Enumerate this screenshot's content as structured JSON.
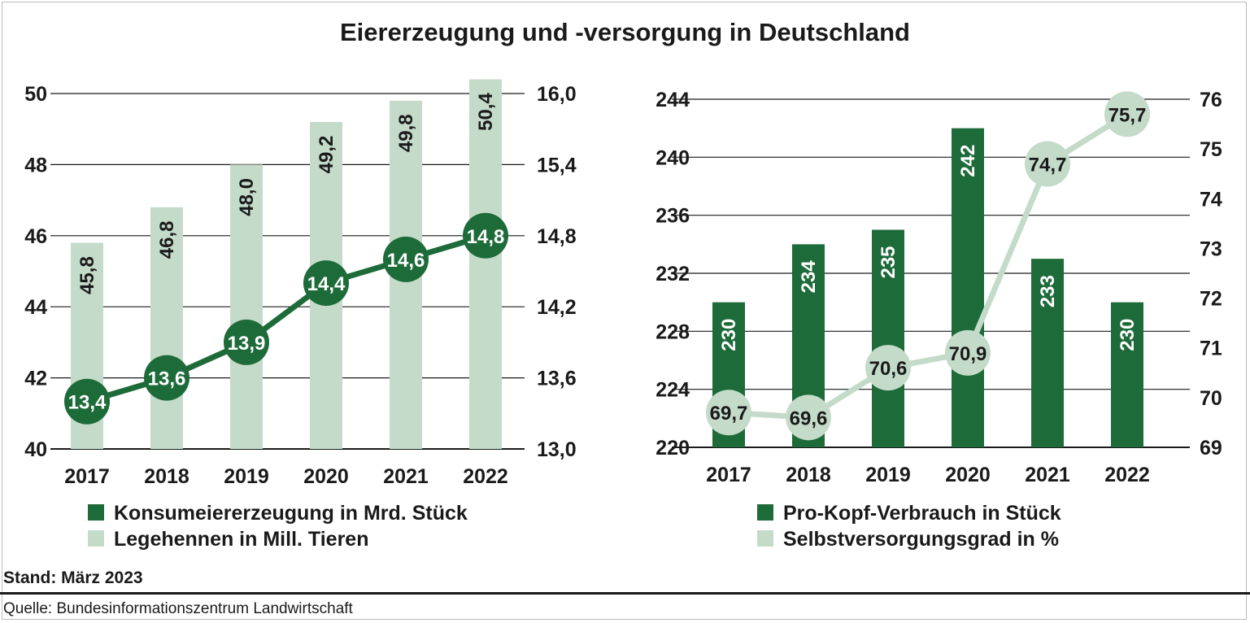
{
  "title": "Eiererzeugung und -versorgung in Deutschland",
  "footer": {
    "stand": "Stand: März 2023",
    "quelle": "Quelle: Bundesinformationszentrum Landwirtschaft"
  },
  "colors": {
    "dark_green": "#1e6b3a",
    "light_green": "#c4dbc9",
    "grid": "#1a1a1a"
  },
  "chart_data": [
    {
      "type": "bar+line",
      "categories": [
        "2017",
        "2018",
        "2019",
        "2020",
        "2021",
        "2022"
      ],
      "bar_series": {
        "name": "Legehennen in Mill. Tieren",
        "values": [
          45.8,
          46.8,
          48.0,
          49.2,
          49.8,
          50.4
        ],
        "labels": [
          "45,8",
          "46,8",
          "48,0",
          "49,2",
          "49,8",
          "50,4"
        ],
        "axis": "left"
      },
      "line_series": {
        "name": "Konsumeiererzeugung in Mrd. Stück",
        "values": [
          13.4,
          13.6,
          13.9,
          14.4,
          14.6,
          14.8
        ],
        "labels": [
          "13,4",
          "13,6",
          "13,9",
          "14,4",
          "14,6",
          "14,8"
        ],
        "axis": "right"
      },
      "left_axis": {
        "ylim": [
          40,
          50
        ],
        "ticks": [
          "40",
          "42",
          "44",
          "46",
          "48",
          "50"
        ]
      },
      "right_axis": {
        "ylim": [
          13.0,
          16.0
        ],
        "ticks": [
          "13,0",
          "13,6",
          "14,2",
          "14,8",
          "15,4",
          "16,0"
        ]
      },
      "legend": [
        {
          "label": "Konsumeiererzeugung in Mrd. Stück",
          "color": "#1e6b3a"
        },
        {
          "label": "Legehennen in Mill. Tieren",
          "color": "#c4dbc9"
        }
      ],
      "grid": true
    },
    {
      "type": "bar+line",
      "categories": [
        "2017",
        "2018",
        "2019",
        "2020",
        "2021",
        "2022"
      ],
      "bar_series": {
        "name": "Pro-Kopf-Verbrauch in Stück",
        "values": [
          230,
          234,
          235,
          242,
          233,
          230
        ],
        "labels": [
          "230",
          "234",
          "235",
          "242",
          "233",
          "230"
        ],
        "axis": "left"
      },
      "line_series": {
        "name": "Selbstversorgungsgrad in %",
        "values": [
          69.7,
          69.6,
          70.6,
          70.9,
          74.7,
          75.7
        ],
        "labels": [
          "69,7",
          "69,6",
          "70,6",
          "70,9",
          "74,7",
          "75,7"
        ],
        "axis": "right"
      },
      "left_axis": {
        "ylim": [
          220,
          244
        ],
        "ticks": [
          "220",
          "224",
          "228",
          "232",
          "236",
          "240",
          "244"
        ]
      },
      "right_axis": {
        "ylim": [
          69,
          76
        ],
        "ticks": [
          "69",
          "70",
          "71",
          "72",
          "73",
          "74",
          "75",
          "76"
        ]
      },
      "legend": [
        {
          "label": "Pro-Kopf-Verbrauch in Stück",
          "color": "#1e6b3a"
        },
        {
          "label": "Selbstversorgungsgrad in %",
          "color": "#c4dbc9"
        }
      ],
      "grid": true
    }
  ]
}
